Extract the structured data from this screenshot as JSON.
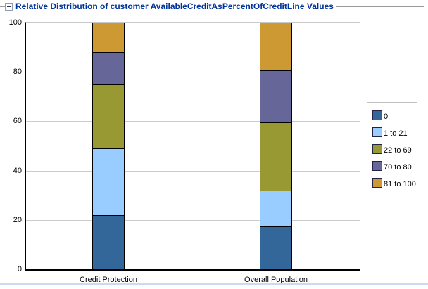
{
  "header": {
    "title": "Relative Distribution of customer AvailableCreditAsPercentOfCreditLine Values",
    "title_color": "#003399",
    "collapse_icon": "minus-box-icon"
  },
  "chart_data": {
    "type": "bar",
    "stacked": true,
    "title": "Relative Distribution of customer AvailableCreditAsPercentOfCreditLine Values",
    "categories": [
      "Credit Protection",
      "Overall Population"
    ],
    "series": [
      {
        "name": "0",
        "color": "#336699",
        "values": [
          22,
          17.5
        ]
      },
      {
        "name": "1 to 21",
        "color": "#99CCFF",
        "values": [
          27,
          14.5
        ]
      },
      {
        "name": "22 to 69",
        "color": "#999933",
        "values": [
          26,
          27.5
        ]
      },
      {
        "name": "70 to 80",
        "color": "#666699",
        "values": [
          13,
          21
        ]
      },
      {
        "name": "81 to 100",
        "color": "#CC9933",
        "values": [
          12,
          19.5
        ]
      }
    ],
    "ylabel": "",
    "xlabel": "",
    "ylim": [
      0,
      100
    ],
    "yticks": [
      0,
      20,
      40,
      60,
      80,
      100
    ],
    "grid": "horizontal",
    "legend_position": "right",
    "legend_labels": [
      "0",
      "1 to 21",
      "22 to 69",
      "70 to 80",
      "81 to 100"
    ],
    "bar_outline_color": "#000000",
    "gridline_color": "#cccccc"
  }
}
